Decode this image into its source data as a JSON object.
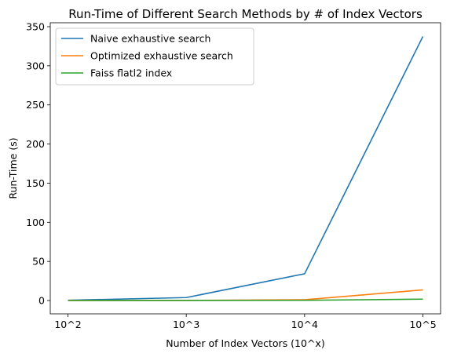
{
  "chart_data": {
    "type": "line",
    "title": "Run-Time of Different Search Methods by # of Index Vectors",
    "xlabel": "Number of Index Vectors (10^x)",
    "ylabel": "Run-Time (s)",
    "categories": [
      "10^2",
      "10^3",
      "10^4",
      "10^5"
    ],
    "ylim": [
      -17,
      355
    ],
    "yticks": [
      0,
      50,
      100,
      150,
      200,
      250,
      300,
      350
    ],
    "grid": false,
    "legend_position": "top-left",
    "series": [
      {
        "name": "Naive exhaustive search",
        "color": "#1f77b4",
        "values": [
          0.4,
          3.8,
          34.2,
          337.5
        ]
      },
      {
        "name": "Optimized exhaustive search",
        "color": "#ff7f0e",
        "values": [
          0.1,
          0.2,
          1.0,
          13.6
        ]
      },
      {
        "name": "Faiss flatl2 index",
        "color": "#2ca02c",
        "values": [
          0.05,
          0.1,
          0.3,
          1.8
        ]
      }
    ]
  }
}
